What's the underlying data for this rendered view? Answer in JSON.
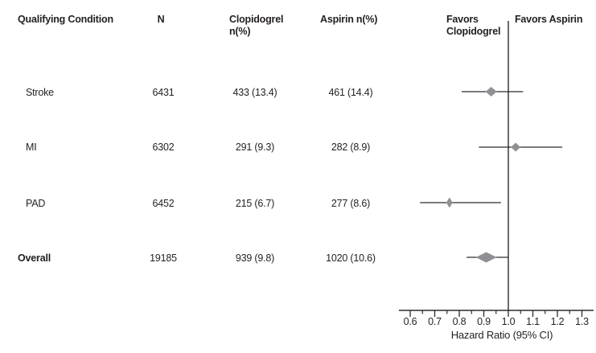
{
  "colors": {
    "text": "#231f20",
    "line": "#2b2b2b",
    "marker_fill": "#8e9093",
    "background": "#ffffff"
  },
  "table": {
    "headers": {
      "condition": "Qualifying Condition",
      "n": "N",
      "clopidogrel_line1": "Clopidogrel",
      "clopidogrel_line2": "n(%)",
      "aspirin": "Aspirin n(%)"
    },
    "rows": [
      {
        "condition": "Stroke",
        "n": "6431",
        "clopidogrel": "433 (13.4)",
        "aspirin": "461 (14.4)"
      },
      {
        "condition": "MI",
        "n": "6302",
        "clopidogrel": "291 (9.3)",
        "aspirin": "282 (8.9)"
      },
      {
        "condition": "PAD",
        "n": "6452",
        "clopidogrel": "215 (6.7)",
        "aspirin": "277 (8.6)"
      },
      {
        "condition": "Overall",
        "n": "19185",
        "clopidogrel": "939 (9.8)",
        "aspirin": "1020 (10.6)"
      }
    ]
  },
  "chart_data": {
    "type": "forest",
    "xlabel": "Hazard Ratio (95% CI)",
    "favors_left_line1": "Favors",
    "favors_left_line2": "Clopidogrel",
    "favors_right": "Favors Aspirin",
    "reference_line": 1.0,
    "xlim": [
      0.55,
      1.35
    ],
    "x_ticks": [
      "0.6",
      "0.7",
      "0.8",
      "0.9",
      "1.0",
      "1.1",
      "1.2",
      "1.3"
    ],
    "x_minor_ticks": [
      0.65,
      0.75,
      0.85,
      0.95,
      1.05,
      1.15,
      1.25
    ],
    "grid": false,
    "rows": [
      {
        "label": "Stroke",
        "hr": 0.93,
        "ci_low": 0.81,
        "ci_high": 1.06,
        "marker_w": 14,
        "marker_h": 12
      },
      {
        "label": "MI",
        "hr": 1.03,
        "ci_low": 0.88,
        "ci_high": 1.22,
        "marker_w": 12,
        "marker_h": 11
      },
      {
        "label": "PAD",
        "hr": 0.76,
        "ci_low": 0.64,
        "ci_high": 0.97,
        "marker_w": 8,
        "marker_h": 13
      },
      {
        "label": "Overall",
        "hr": 0.91,
        "ci_low": 0.83,
        "ci_high": 1.0,
        "marker_w": 26,
        "marker_h": 13
      }
    ]
  }
}
